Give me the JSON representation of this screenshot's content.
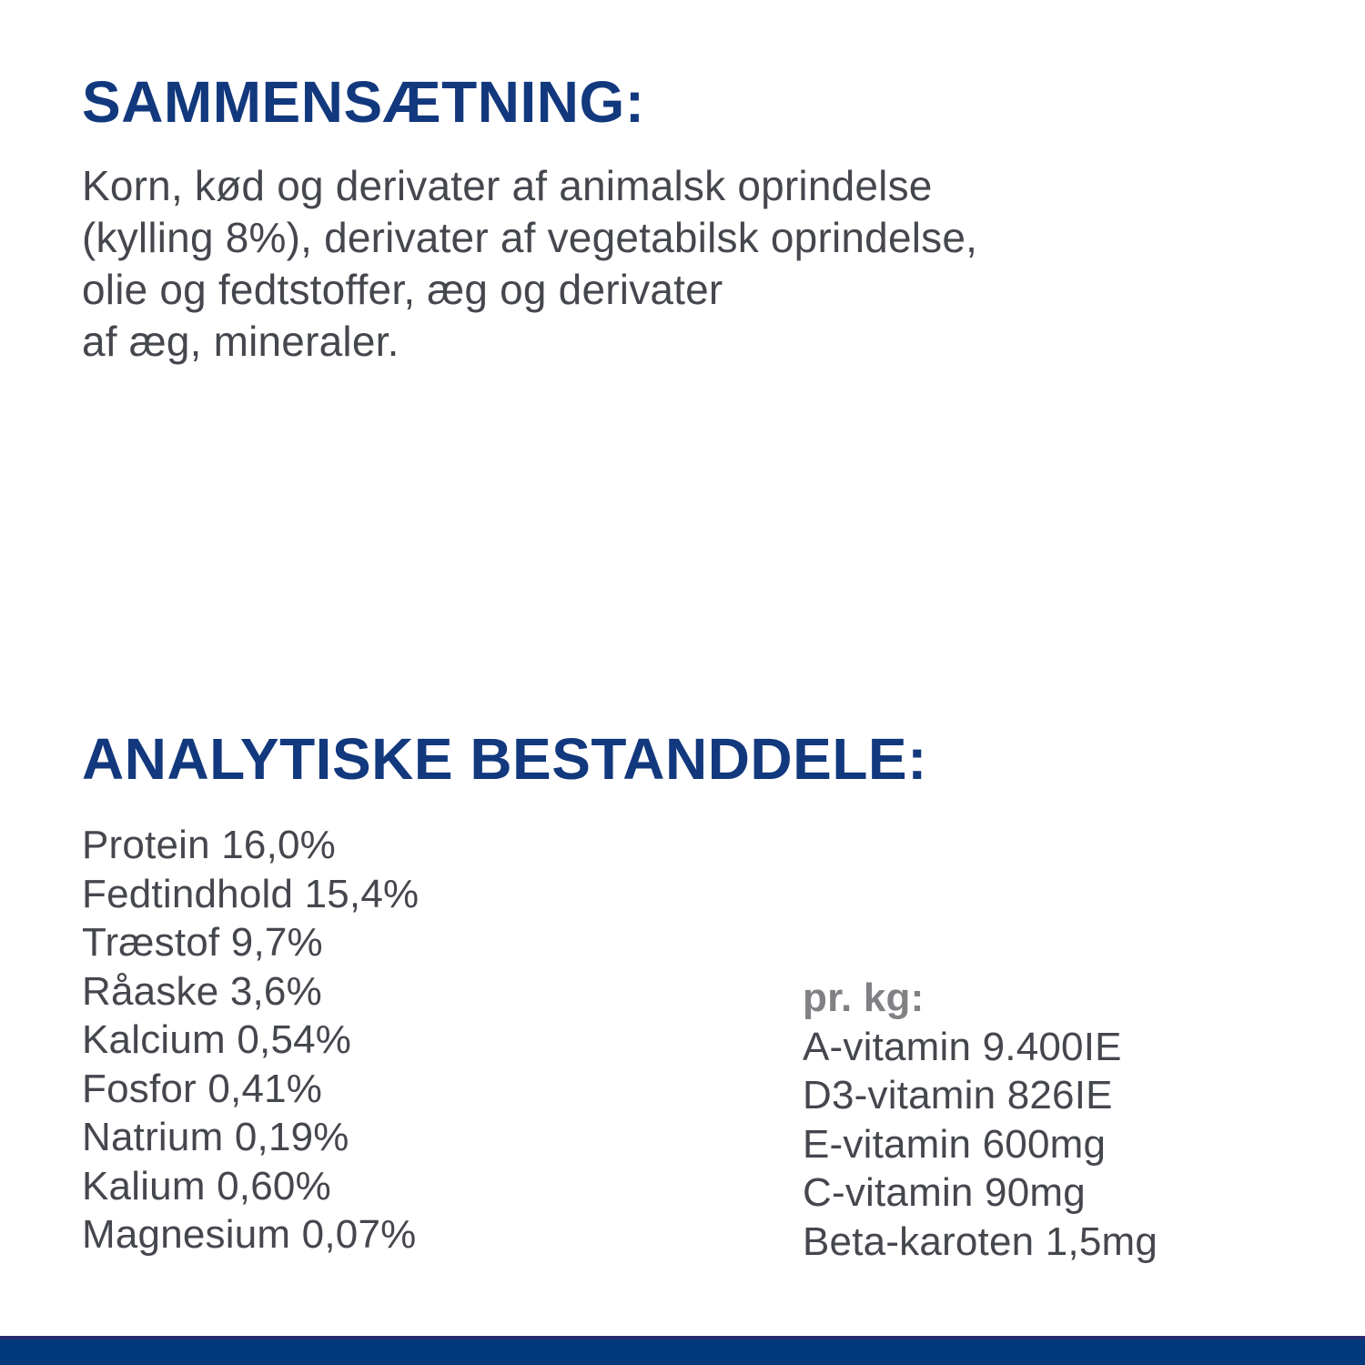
{
  "colors": {
    "heading_navy": "#12387D",
    "body_text_gray": "#45474E",
    "per_kg_label_gray": "#7F8184",
    "bottom_bar_navy": "#003A7D",
    "bottom_bar_top_edge": "#272B70",
    "background": "#FFFFFF"
  },
  "composition": {
    "heading": "SAMMENSÆTNING:",
    "lines": [
      "Korn, kød og derivater af animalsk oprindelse",
      "(kylling 8%), derivater af vegetabilsk oprindelse,",
      "olie og fedtstoffer, æg og derivater",
      "af æg, mineraler."
    ]
  },
  "analytical": {
    "heading": "ANALYTISKE BESTANDDELE:",
    "items": [
      {
        "name": "Protein",
        "value": "16,0%"
      },
      {
        "name": "Fedtindhold",
        "value": "15,4%"
      },
      {
        "name": "Træstof",
        "value": "9,7%"
      },
      {
        "name": "Råaske",
        "value": "3,6%"
      },
      {
        "name": "Kalcium",
        "value": "0,54%"
      },
      {
        "name": "Fosfor",
        "value": "0,41%"
      },
      {
        "name": "Natrium",
        "value": "0,19%"
      },
      {
        "name": "Kalium",
        "value": "0,60%"
      },
      {
        "name": "Magnesium",
        "value": "0,07%"
      }
    ],
    "per_kg": {
      "label": "pr. kg:",
      "items": [
        {
          "name": "A-vitamin",
          "value": "9.400IE"
        },
        {
          "name": "D3-vitamin",
          "value": "826IE"
        },
        {
          "name": "E-vitamin",
          "value": "600mg"
        },
        {
          "name": "C-vitamin",
          "value": "90mg"
        },
        {
          "name": "Beta-karoten",
          "value": "1,5mg"
        }
      ]
    }
  }
}
